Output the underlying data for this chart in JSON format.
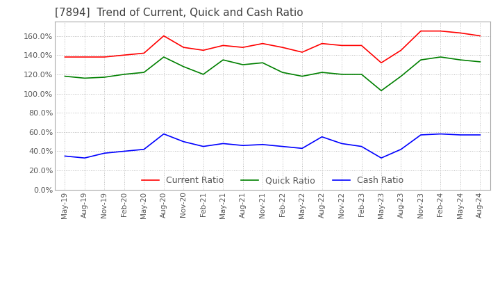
{
  "title": "[7894]  Trend of Current, Quick and Cash Ratio",
  "x_labels": [
    "May-19",
    "Aug-19",
    "Nov-19",
    "Feb-20",
    "May-20",
    "Aug-20",
    "Nov-20",
    "Feb-21",
    "May-21",
    "Aug-21",
    "Nov-21",
    "Feb-22",
    "May-22",
    "Aug-22",
    "Nov-22",
    "Feb-23",
    "May-23",
    "Aug-23",
    "Nov-23",
    "Feb-24",
    "May-24",
    "Aug-24"
  ],
  "current_ratio": [
    138,
    138,
    138,
    140,
    142,
    160,
    148,
    145,
    150,
    148,
    152,
    148,
    143,
    152,
    150,
    150,
    132,
    145,
    165,
    165,
    163,
    160
  ],
  "quick_ratio": [
    118,
    116,
    117,
    120,
    122,
    138,
    128,
    120,
    135,
    130,
    132,
    122,
    118,
    122,
    120,
    120,
    103,
    118,
    135,
    138,
    135,
    133
  ],
  "cash_ratio": [
    35,
    33,
    38,
    40,
    42,
    58,
    50,
    45,
    48,
    46,
    47,
    45,
    43,
    55,
    48,
    45,
    33,
    42,
    57,
    58,
    57,
    57
  ],
  "current_color": "#FF0000",
  "quick_color": "#008000",
  "cash_color": "#0000FF",
  "ylim": [
    0,
    175
  ],
  "yticks": [
    0,
    20,
    40,
    60,
    80,
    100,
    120,
    140,
    160
  ],
  "background_color": "#FFFFFF",
  "plot_bg_color": "#FFFFFF",
  "grid_color": "#BBBBBB",
  "title_color": "#404040",
  "title_fontsize": 11,
  "legend_labels": [
    "Current Ratio",
    "Quick Ratio",
    "Cash Ratio"
  ],
  "line_width": 1.2
}
